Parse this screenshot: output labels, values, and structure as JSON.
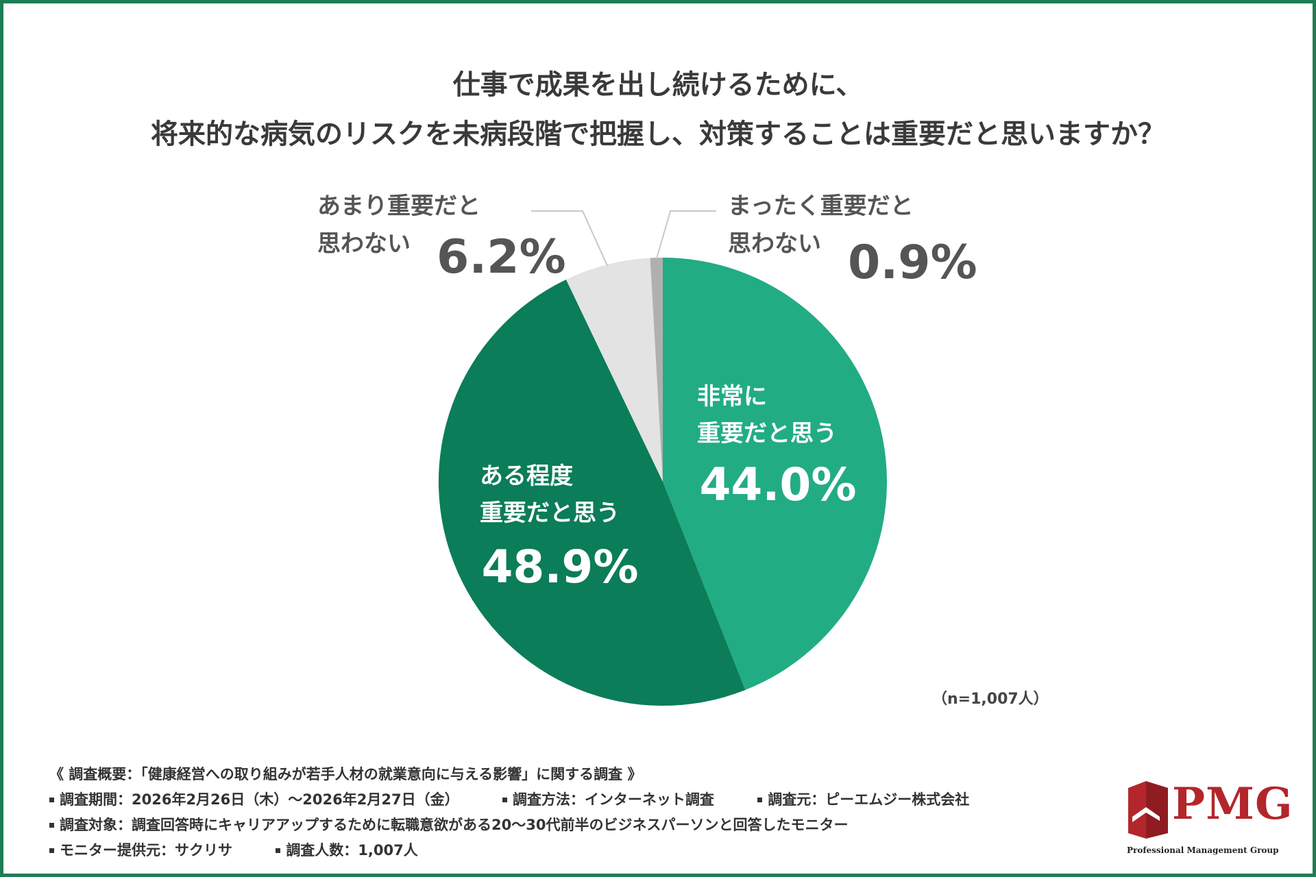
{
  "title": {
    "line1": "仕事で成果を出し続けるために、",
    "line2": "将来的な病気のリスクを未病段階で把握し、対策することは重要だと思いますか？"
  },
  "chart_data": {
    "type": "pie",
    "title": "仕事で成果を出し続けるために、将来的な病気のリスクを未病段階で把握し、対策することは重要だと思いますか？",
    "slices": [
      {
        "label_lines": [
          "非常に",
          "重要だと思う"
        ],
        "value": 44.0,
        "value_label": "44.0%",
        "color": "#22ac84"
      },
      {
        "label_lines": [
          "ある程度",
          "重要だと思う"
        ],
        "value": 48.9,
        "value_label": "48.9%",
        "color": "#0b7d58"
      },
      {
        "label_lines": [
          "あまり重要だと",
          "思わない"
        ],
        "value": 6.2,
        "value_label": "6.2%",
        "color": "#e3e3e3"
      },
      {
        "label_lines": [
          "まったく重要だと",
          "思わない"
        ],
        "value": 0.9,
        "value_label": "0.9%",
        "color": "#b0b0b0"
      }
    ],
    "sample_note": "（n=1,007人）"
  },
  "footer": {
    "heading": "《 調査概要：「健康経営への取り組みが若手人材の就業意向に与える影響」に関する調査 》",
    "period": "調査期間：2026年2月26日（木）〜2026年2月27日（金）",
    "method": "調査方法：インターネット調査",
    "source": "調査元：ピーエムジー株式会社",
    "target": "調査対象：調査回答時にキャリアアップするために転職意欲がある20〜30代前半のビジネスパーソンと回答したモニター",
    "provider": "モニター提供元：サクリサ",
    "count": "調査人数：1,007人"
  },
  "logo": {
    "name": "PMG",
    "subtitle": "Professional Management Group"
  }
}
